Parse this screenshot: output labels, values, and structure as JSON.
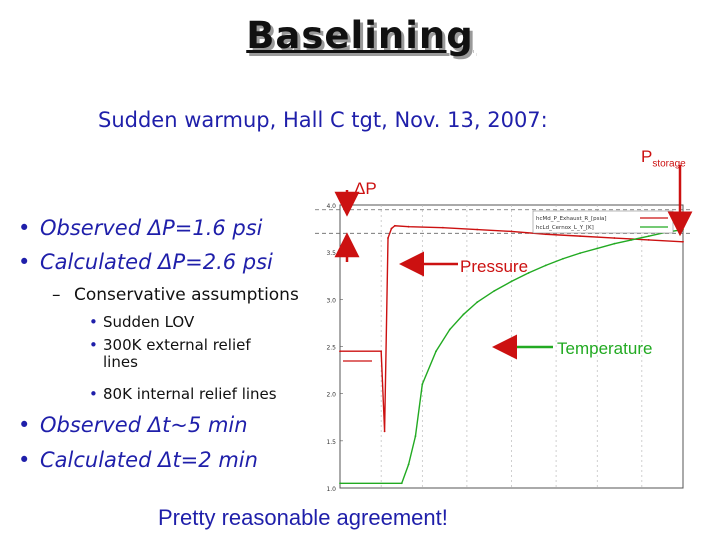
{
  "slide": {
    "title": "Baselining",
    "subtitle": "Sudden warmup, Hall C tgt, Nov. 13, 2007:",
    "bullets": [
      "Observed ΔP=1.6 psi",
      "Calculated ΔP=2.6 psi"
    ],
    "sub_bullet": "Conservative assumptions",
    "sub_sub_bullets": [
      "Sudden LOV",
      "300K external relief lines",
      "80K internal relief lines"
    ],
    "bullets2": [
      "Observed Δt~5 min",
      "Calculated Δt=2 min"
    ],
    "footer": "Pretty reasonable agreement!",
    "annotations": {
      "pstorage_main": "P",
      "pstorage_sub": "storage",
      "delta_p": "ΔP",
      "pressure": "Pressure",
      "temperature": "Temperature"
    }
  },
  "colors": {
    "text_blue": "#1f1faa",
    "pressure_red": "#cc1111",
    "temperature_green": "#22aa22",
    "arrow_red": "#cc1111"
  },
  "chart_data": {
    "type": "line",
    "legend": [
      "hcMd_P_Exhaust_R_[psia]",
      "hcLd_Cernox_L_Y_[K]"
    ],
    "legend_placement": "top-right",
    "ylim": [
      10,
      40
    ],
    "yticks": [
      "4.0",
      "3.5",
      "3.0",
      "2.5",
      "2.0",
      "1.5",
      "1.0"
    ],
    "series": [
      {
        "name": "hcMd_P_Exhaust_R_[psia]",
        "x": [
          0,
          12,
          13,
          14,
          15,
          16,
          20,
          30,
          40,
          50,
          60,
          70,
          80,
          90,
          100
        ],
        "y": [
          24.5,
          24.5,
          16.0,
          36.5,
          37.5,
          37.8,
          37.7,
          37.6,
          37.4,
          37.2,
          36.9,
          36.7,
          36.5,
          36.3,
          36.1
        ]
      },
      {
        "name": "hcLd_Cernox_L_Y_[K]",
        "x": [
          0,
          18,
          20,
          22,
          24,
          28,
          32,
          36,
          40,
          45,
          50,
          55,
          60,
          65,
          70,
          75,
          80,
          85,
          90,
          95,
          100
        ],
        "y": [
          10.5,
          10.5,
          12.5,
          15.5,
          21.0,
          24.5,
          26.8,
          28.4,
          29.7,
          30.9,
          31.9,
          32.8,
          33.6,
          34.3,
          34.9,
          35.4,
          35.9,
          36.3,
          36.7,
          37.1,
          37.4
        ]
      }
    ],
    "pstorage_level": 37.0,
    "baseline_level": 39.5
  }
}
